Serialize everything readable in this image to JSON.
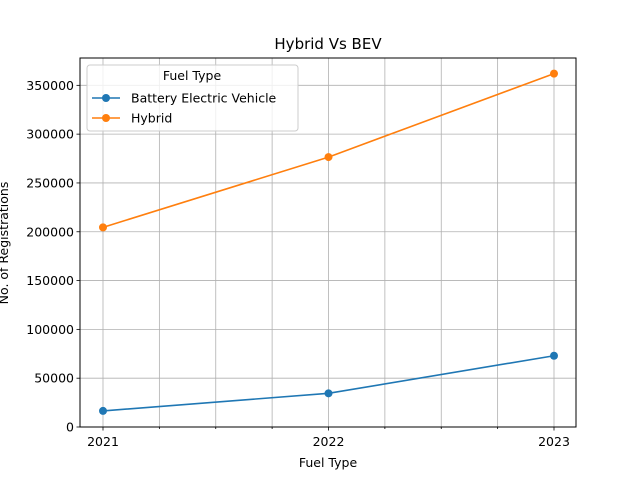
{
  "chart_data": {
    "type": "line",
    "title": "Hybrid Vs BEV",
    "xlabel": "Fuel Type",
    "ylabel": "No. of Registrations",
    "x": [
      "2021",
      "2022",
      "2023"
    ],
    "ylim": [
      0,
      378000
    ],
    "yticks": [
      0,
      50000,
      100000,
      150000,
      200000,
      250000,
      300000,
      350000
    ],
    "ytick_labels": [
      "0",
      "50000",
      "100000",
      "150000",
      "200000",
      "250000",
      "300000",
      "350000"
    ],
    "xticks_minor_count": 3,
    "grid": true,
    "legend": {
      "title": "Fuel Type",
      "placement": "top-left"
    },
    "series": [
      {
        "name": "Battery Electric Vehicle",
        "color": "#1f77b4",
        "values": [
          16500,
          34500,
          73000
        ]
      },
      {
        "name": "Hybrid",
        "color": "#ff7f0e",
        "values": [
          204500,
          276500,
          362000
        ]
      }
    ]
  }
}
